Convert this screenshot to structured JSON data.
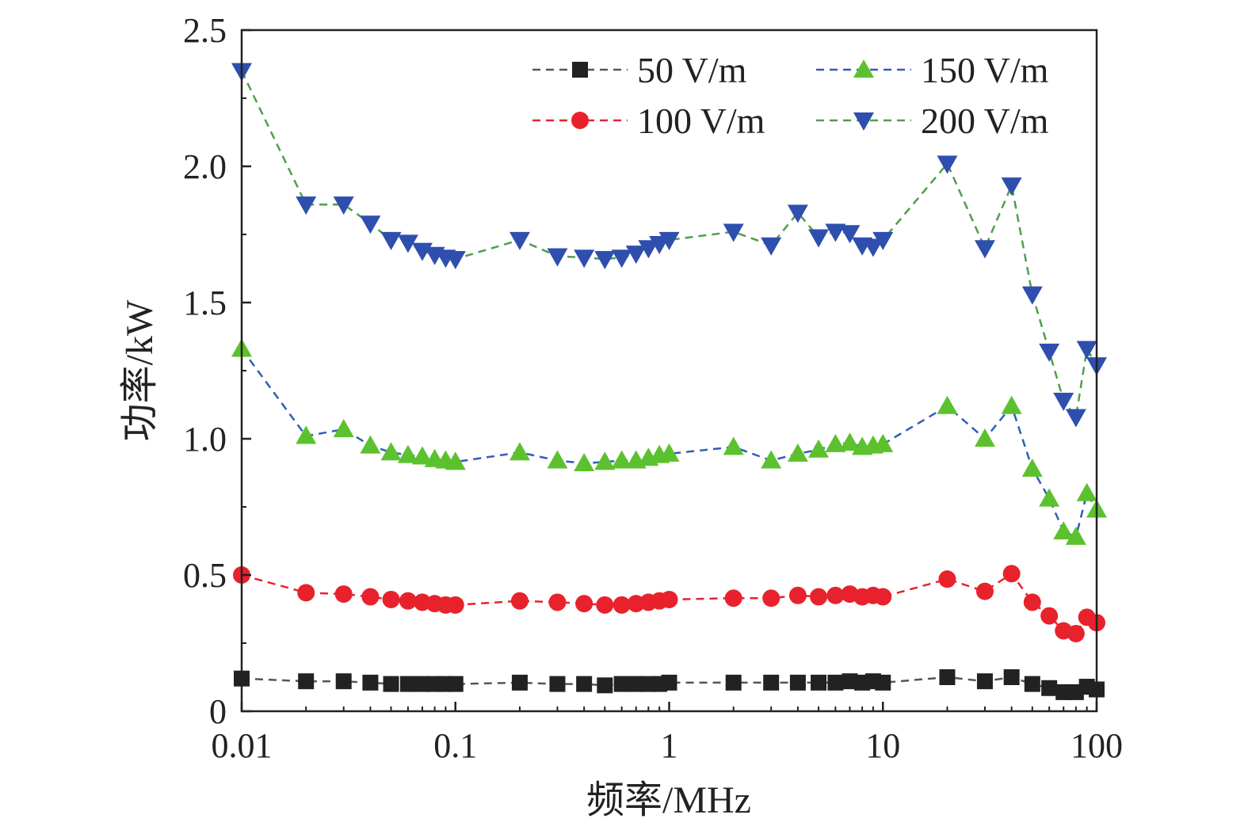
{
  "chart_data": {
    "type": "line",
    "xlabel": "频率/MHz",
    "ylabel": "功率/kW",
    "xscale": "log",
    "xlim": [
      0.01,
      100
    ],
    "ylim": [
      0,
      2.5
    ],
    "xticks": [
      {
        "value": 0.01,
        "label": "0.01"
      },
      {
        "value": 0.1,
        "label": "0.1"
      },
      {
        "value": 1,
        "label": "1"
      },
      {
        "value": 10,
        "label": "10"
      },
      {
        "value": 100,
        "label": "100"
      }
    ],
    "yticks": [
      {
        "value": 0,
        "label": "0"
      },
      {
        "value": 0.5,
        "label": "0.5"
      },
      {
        "value": 1.0,
        "label": "1.0"
      },
      {
        "value": 1.5,
        "label": "1.5"
      },
      {
        "value": 2.0,
        "label": "2.0"
      },
      {
        "value": 2.5,
        "label": "2.5"
      }
    ],
    "grid": false,
    "legend_position": "top-right",
    "x": [
      0.01,
      0.02,
      0.03,
      0.04,
      0.05,
      0.06,
      0.07,
      0.08,
      0.09,
      0.1,
      0.2,
      0.3,
      0.4,
      0.5,
      0.6,
      0.7,
      0.8,
      0.9,
      1,
      2,
      3,
      4,
      5,
      6,
      7,
      8,
      9,
      10,
      20,
      30,
      40,
      50,
      60,
      70,
      80,
      90,
      100
    ],
    "series": [
      {
        "name": "50 V/m",
        "color": "#222222",
        "line_color": "#555555",
        "marker": "square",
        "values": [
          0.12,
          0.11,
          0.11,
          0.105,
          0.1,
          0.1,
          0.1,
          0.1,
          0.1,
          0.1,
          0.105,
          0.1,
          0.1,
          0.095,
          0.1,
          0.1,
          0.1,
          0.1,
          0.105,
          0.105,
          0.105,
          0.105,
          0.105,
          0.105,
          0.11,
          0.105,
          0.11,
          0.105,
          0.125,
          0.11,
          0.125,
          0.1,
          0.085,
          0.07,
          0.07,
          0.09,
          0.08
        ]
      },
      {
        "name": "100 V/m",
        "color": "#e8222c",
        "line_color": "#e8222c",
        "marker": "circle",
        "values": [
          0.5,
          0.435,
          0.43,
          0.42,
          0.41,
          0.405,
          0.4,
          0.395,
          0.39,
          0.39,
          0.405,
          0.4,
          0.395,
          0.39,
          0.39,
          0.395,
          0.4,
          0.405,
          0.41,
          0.415,
          0.415,
          0.425,
          0.42,
          0.425,
          0.43,
          0.42,
          0.425,
          0.42,
          0.485,
          0.44,
          0.505,
          0.4,
          0.35,
          0.295,
          0.285,
          0.345,
          0.325
        ]
      },
      {
        "name": "150 V/m",
        "color": "#5cc12e",
        "line_color": "#2f5fb5",
        "marker": "triangle-up",
        "values": [
          1.33,
          1.01,
          1.035,
          0.975,
          0.95,
          0.94,
          0.935,
          0.925,
          0.92,
          0.915,
          0.95,
          0.92,
          0.91,
          0.915,
          0.92,
          0.92,
          0.93,
          0.94,
          0.945,
          0.97,
          0.92,
          0.945,
          0.96,
          0.98,
          0.985,
          0.97,
          0.975,
          0.98,
          1.12,
          1.0,
          1.12,
          0.89,
          0.78,
          0.66,
          0.64,
          0.8,
          0.74
        ]
      },
      {
        "name": "200 V/m",
        "color": "#2f4fae",
        "line_color": "#4f9e4c",
        "marker": "triangle-down",
        "values": [
          2.35,
          1.86,
          1.86,
          1.79,
          1.73,
          1.72,
          1.69,
          1.675,
          1.665,
          1.66,
          1.73,
          1.67,
          1.665,
          1.66,
          1.665,
          1.68,
          1.7,
          1.715,
          1.73,
          1.76,
          1.71,
          1.83,
          1.74,
          1.76,
          1.755,
          1.71,
          1.705,
          1.73,
          2.01,
          1.7,
          1.93,
          1.53,
          1.32,
          1.14,
          1.08,
          1.33,
          1.27
        ]
      }
    ]
  }
}
